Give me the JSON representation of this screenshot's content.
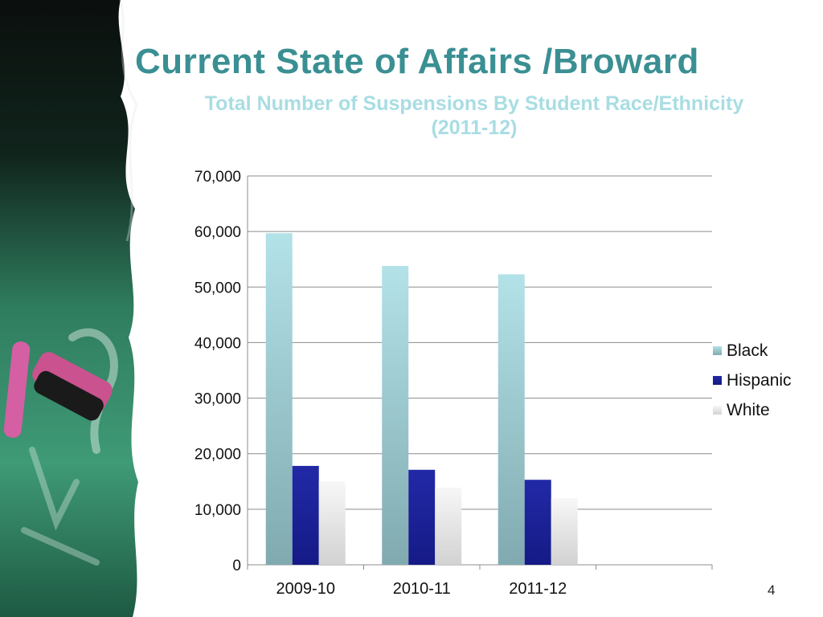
{
  "slide": {
    "title": "Current State of Affairs /Broward",
    "page_number": "4"
  },
  "colors": {
    "title": "#3a8f93",
    "chart_title": "#a8dde3",
    "black_series": "#a6d8de",
    "hispanic_series": "#1a1f9a",
    "white_series": "#f2f2f2"
  },
  "chart_data": {
    "type": "bar",
    "title_lines": [
      "Total Number of Suspensions By Student Race/Ethnicity",
      "(2011-12)"
    ],
    "categories": [
      "2009-10",
      "2010-11",
      "2011-12"
    ],
    "series": [
      {
        "name": "Black",
        "values": [
          59700,
          53800,
          52300
        ]
      },
      {
        "name": "Hispanic",
        "values": [
          17800,
          17100,
          15300
        ]
      },
      {
        "name": "White",
        "values": [
          15000,
          13900,
          12000
        ]
      }
    ],
    "ylim": [
      0,
      70000
    ],
    "yticks": [
      0,
      10000,
      20000,
      30000,
      40000,
      50000,
      60000,
      70000
    ],
    "ytick_labels": [
      "0",
      "10,000",
      "20,000",
      "30,000",
      "40,000",
      "50,000",
      "60,000",
      "70,000"
    ],
    "grid": true,
    "legend_position": "right"
  }
}
